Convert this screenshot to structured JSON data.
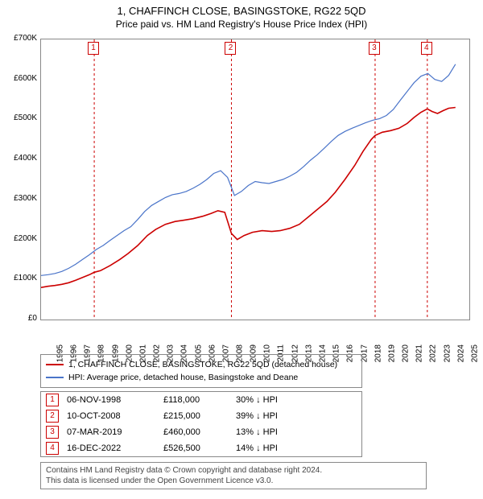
{
  "title": "1, CHAFFINCH CLOSE, BASINGSTOKE, RG22 5QD",
  "subtitle": "Price paid vs. HM Land Registry's House Price Index (HPI)",
  "chart": {
    "type": "line",
    "background_color": "#ffffff",
    "border_color": "#888888",
    "x": {
      "min": 1995,
      "max": 2026,
      "ticks": [
        1995,
        1996,
        1997,
        1998,
        1999,
        2000,
        2001,
        2002,
        2003,
        2004,
        2005,
        2006,
        2007,
        2008,
        2009,
        2010,
        2011,
        2012,
        2013,
        2014,
        2015,
        2016,
        2017,
        2018,
        2019,
        2020,
        2021,
        2022,
        2023,
        2024,
        2025
      ]
    },
    "y": {
      "min": 0,
      "max": 700000,
      "tick_step": 100000,
      "labels": [
        "£0",
        "£100K",
        "£200K",
        "£300K",
        "£400K",
        "£500K",
        "£600K",
        "£700K"
      ]
    },
    "marker_line_color": "#cc0000",
    "marker_line_dash": "3,3",
    "markers": [
      {
        "n": "1",
        "year": 1998.85
      },
      {
        "n": "2",
        "year": 2008.78
      },
      {
        "n": "3",
        "year": 2019.18
      },
      {
        "n": "4",
        "year": 2022.96
      }
    ],
    "series": [
      {
        "name": "price_paid",
        "label": "1, CHAFFINCH CLOSE, BASINGSTOKE, RG22 5QD (detached house)",
        "color": "#cc0000",
        "line_width": 1.6,
        "points": [
          [
            1995,
            80000
          ],
          [
            1995.5,
            83000
          ],
          [
            1996,
            85000
          ],
          [
            1996.5,
            88000
          ],
          [
            1997,
            92000
          ],
          [
            1997.5,
            98000
          ],
          [
            1998,
            105000
          ],
          [
            1998.5,
            112000
          ],
          [
            1998.85,
            118000
          ],
          [
            1998.85,
            118000
          ],
          [
            1999.3,
            122000
          ],
          [
            2000,
            135000
          ],
          [
            2000.7,
            150000
          ],
          [
            2001.3,
            165000
          ],
          [
            2002,
            185000
          ],
          [
            2002.7,
            210000
          ],
          [
            2003.3,
            225000
          ],
          [
            2004,
            238000
          ],
          [
            2004.7,
            245000
          ],
          [
            2005.3,
            248000
          ],
          [
            2006,
            252000
          ],
          [
            2006.7,
            258000
          ],
          [
            2007.3,
            265000
          ],
          [
            2007.8,
            272000
          ],
          [
            2008.3,
            268000
          ],
          [
            2008.78,
            215000
          ],
          [
            2008.78,
            215000
          ],
          [
            2009.2,
            200000
          ],
          [
            2009.7,
            210000
          ],
          [
            2010.3,
            218000
          ],
          [
            2011,
            222000
          ],
          [
            2011.7,
            220000
          ],
          [
            2012.3,
            222000
          ],
          [
            2013,
            228000
          ],
          [
            2013.7,
            238000
          ],
          [
            2014.3,
            255000
          ],
          [
            2015,
            275000
          ],
          [
            2015.7,
            295000
          ],
          [
            2016.3,
            318000
          ],
          [
            2017,
            350000
          ],
          [
            2017.7,
            385000
          ],
          [
            2018.3,
            420000
          ],
          [
            2018.9,
            450000
          ],
          [
            2019.18,
            460000
          ],
          [
            2019.18,
            460000
          ],
          [
            2019.7,
            468000
          ],
          [
            2020.3,
            472000
          ],
          [
            2020.9,
            478000
          ],
          [
            2021.5,
            490000
          ],
          [
            2022,
            505000
          ],
          [
            2022.5,
            518000
          ],
          [
            2022.96,
            526500
          ],
          [
            2022.96,
            526500
          ],
          [
            2023.3,
            520000
          ],
          [
            2023.7,
            515000
          ],
          [
            2024.1,
            522000
          ],
          [
            2024.5,
            528000
          ],
          [
            2025,
            530000
          ]
        ]
      },
      {
        "name": "hpi",
        "label": "HPI: Average price, detached house, Basingstoke and Deane",
        "color": "#4a74c9",
        "line_width": 1.2,
        "points": [
          [
            1995,
            110000
          ],
          [
            1995.5,
            112000
          ],
          [
            1996,
            115000
          ],
          [
            1996.5,
            120000
          ],
          [
            1997,
            128000
          ],
          [
            1997.5,
            138000
          ],
          [
            1998,
            150000
          ],
          [
            1998.5,
            162000
          ],
          [
            1999,
            175000
          ],
          [
            1999.5,
            185000
          ],
          [
            2000,
            198000
          ],
          [
            2000.5,
            210000
          ],
          [
            2001,
            222000
          ],
          [
            2001.5,
            232000
          ],
          [
            2002,
            250000
          ],
          [
            2002.5,
            270000
          ],
          [
            2003,
            285000
          ],
          [
            2003.5,
            295000
          ],
          [
            2004,
            305000
          ],
          [
            2004.5,
            312000
          ],
          [
            2005,
            315000
          ],
          [
            2005.5,
            320000
          ],
          [
            2006,
            328000
          ],
          [
            2006.5,
            338000
          ],
          [
            2007,
            350000
          ],
          [
            2007.5,
            365000
          ],
          [
            2008,
            372000
          ],
          [
            2008.5,
            355000
          ],
          [
            2009,
            310000
          ],
          [
            2009.5,
            320000
          ],
          [
            2010,
            335000
          ],
          [
            2010.5,
            345000
          ],
          [
            2011,
            342000
          ],
          [
            2011.5,
            340000
          ],
          [
            2012,
            345000
          ],
          [
            2012.5,
            350000
          ],
          [
            2013,
            358000
          ],
          [
            2013.5,
            368000
          ],
          [
            2014,
            382000
          ],
          [
            2014.5,
            398000
          ],
          [
            2015,
            412000
          ],
          [
            2015.5,
            428000
          ],
          [
            2016,
            445000
          ],
          [
            2016.5,
            460000
          ],
          [
            2017,
            470000
          ],
          [
            2017.5,
            478000
          ],
          [
            2018,
            485000
          ],
          [
            2018.5,
            492000
          ],
          [
            2019,
            498000
          ],
          [
            2019.5,
            502000
          ],
          [
            2020,
            510000
          ],
          [
            2020.5,
            525000
          ],
          [
            2021,
            548000
          ],
          [
            2021.5,
            570000
          ],
          [
            2022,
            592000
          ],
          [
            2022.5,
            608000
          ],
          [
            2023,
            615000
          ],
          [
            2023.5,
            600000
          ],
          [
            2024,
            595000
          ],
          [
            2024.5,
            610000
          ],
          [
            2025,
            638000
          ]
        ]
      }
    ]
  },
  "legend": {
    "rows": [
      {
        "color": "#cc0000",
        "label": "1, CHAFFINCH CLOSE, BASINGSTOKE, RG22 5QD (detached house)"
      },
      {
        "color": "#4a74c9",
        "label": "HPI: Average price, detached house, Basingstoke and Deane"
      }
    ]
  },
  "transactions": {
    "hpi_suffix": "HPI",
    "arrow": "↓",
    "rows": [
      {
        "n": "1",
        "date": "06-NOV-1998",
        "price": "£118,000",
        "pct": "30%"
      },
      {
        "n": "2",
        "date": "10-OCT-2008",
        "price": "£215,000",
        "pct": "39%"
      },
      {
        "n": "3",
        "date": "07-MAR-2019",
        "price": "£460,000",
        "pct": "13%"
      },
      {
        "n": "4",
        "date": "16-DEC-2022",
        "price": "£526,500",
        "pct": "14%"
      }
    ]
  },
  "footer": {
    "line1": "Contains HM Land Registry data © Crown copyright and database right 2024.",
    "line2": "This data is licensed under the Open Government Licence v3.0."
  }
}
